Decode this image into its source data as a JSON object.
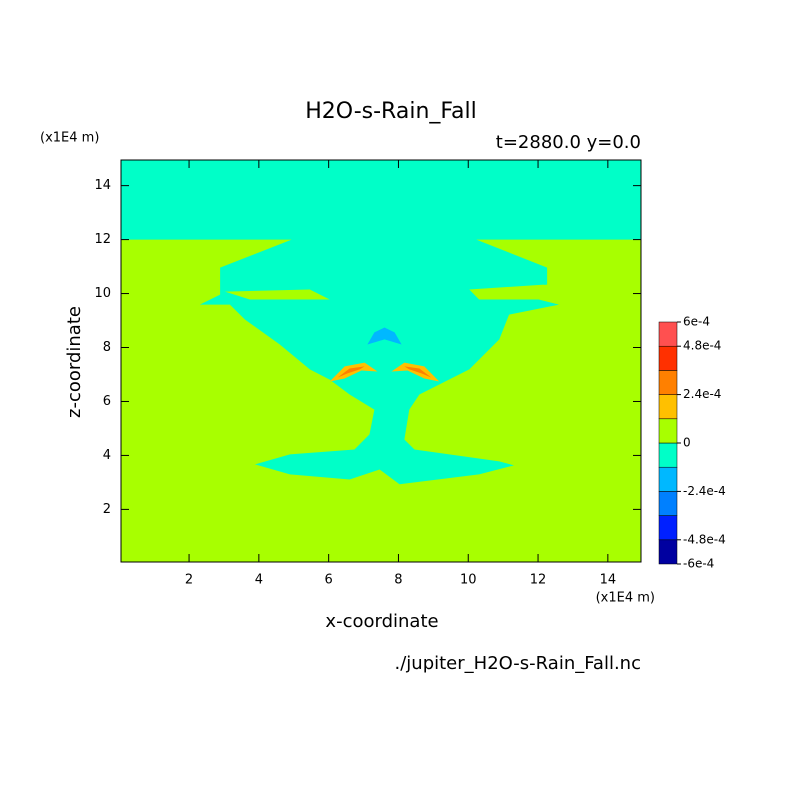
{
  "chart_data": {
    "type": "contour",
    "title": "H2O-s-Rain_Fall",
    "subtitle": "t=2880.0 y=0.0",
    "x_label": "x-coordinate",
    "y_label": "z-coordinate",
    "x_unit": "(x1E4 m)",
    "y_unit": "(x1E4 m)",
    "source": "./jupiter_H2O-s-Rain_Fall.nc",
    "xlim": [
      0.05,
      14.95
    ],
    "ylim": [
      0.05,
      14.95
    ],
    "xticks": [
      2,
      4,
      6,
      8,
      10,
      12,
      14
    ],
    "yticks": [
      2,
      4,
      6,
      8,
      10,
      12,
      14
    ],
    "levels": [
      -0.0006,
      -0.00048,
      -0.00036,
      -0.00024,
      -0.00012,
      0,
      0.00012,
      0.00024,
      0.00036,
      0.00048,
      0.0006
    ],
    "colors": [
      "#0000a0",
      "#0020ff",
      "#0080ff",
      "#00b8ff",
      "#00ffc8",
      "#a8ff00",
      "#ffc000",
      "#ff8000",
      "#ff3000",
      "#ff5050"
    ],
    "cticks": [
      {
        "value": 0.0006,
        "label": "6e-4"
      },
      {
        "value": 0.00048,
        "label": "4.8e-4"
      },
      {
        "value": 0.00024,
        "label": "2.4e-4"
      },
      0,
      {
        "value": -0.00024,
        "label": "-2.4e-4"
      },
      {
        "value": -0.00048,
        "label": "-4.8e-4"
      },
      {
        "value": -0.0006,
        "label": "-6e-4"
      }
    ],
    "regions": [
      {
        "value": 6e-05,
        "x": [
          0.05,
          14.95,
          14.95,
          0.05
        ],
        "y": [
          0.05,
          0.05,
          14.95,
          14.95
        ]
      },
      {
        "value": -6e-05,
        "x": [
          0.05,
          14.95,
          14.95,
          10.23,
          12.26,
          12.26,
          10.89,
          12.6,
          11.17,
          10.89,
          10.03,
          9.17,
          8.6,
          8.31,
          8.17,
          8.46,
          10.89,
          11.31,
          10.31,
          8.03,
          7.46,
          6.6,
          4.89,
          3.89,
          4.89,
          6.74,
          7.17,
          7.31,
          6.6,
          6.03,
          5.46,
          4.6,
          3.6,
          3.17,
          2.31,
          2.89,
          2.89,
          4.94,
          0.05
        ],
        "y": [
          14.95,
          14.95,
          12,
          12,
          10.96,
          10.33,
          10.15,
          9.59,
          9.22,
          8.3,
          7.19,
          6.63,
          6.26,
          5.7,
          4.59,
          4.22,
          3.78,
          3.63,
          3.3,
          2.93,
          3.48,
          3.11,
          3.3,
          3.67,
          4.04,
          4.22,
          4.78,
          5.7,
          6.26,
          6.81,
          7.19,
          8.11,
          9.04,
          9.59,
          9.59,
          9.96,
          10.96,
          12,
          12
        ]
      },
      {
        "value": 6e-05,
        "x": [
          3.03,
          5.46,
          6.03,
          3.74
        ],
        "y": [
          10.07,
          10.15,
          9.78,
          9.78
        ]
      },
      {
        "value": 6e-05,
        "x": [
          10.03,
          12.17,
          12.6,
          10.31
        ],
        "y": [
          10.15,
          10.33,
          9.78,
          9.78
        ]
      },
      {
        "value": -0.00018,
        "x": [
          7.11,
          7.31,
          7.6,
          7.89,
          8.09,
          7.6
        ],
        "y": [
          8.11,
          8.56,
          8.74,
          8.56,
          8.11,
          8.3
        ]
      },
      {
        "value": 0.00018,
        "x": [
          6.03,
          6.46,
          7.03,
          7.4,
          6.94,
          6.46
        ],
        "y": [
          6.74,
          7.3,
          7.44,
          7.11,
          7.15,
          6.85
        ]
      },
      {
        "value": 0.0003,
        "x": [
          6.26,
          6.6,
          7.03,
          6.89,
          6.54
        ],
        "y": [
          6.89,
          7.22,
          7.3,
          7.19,
          7.04
        ]
      },
      {
        "value": 0.00018,
        "x": [
          9.17,
          8.74,
          8.17,
          7.8,
          8.26,
          8.74
        ],
        "y": [
          6.74,
          7.3,
          7.44,
          7.11,
          7.15,
          6.85
        ]
      },
      {
        "value": 0.0003,
        "x": [
          8.94,
          8.6,
          8.17,
          8.31,
          8.66
        ],
        "y": [
          6.89,
          7.22,
          7.3,
          7.19,
          7.04
        ]
      }
    ]
  }
}
